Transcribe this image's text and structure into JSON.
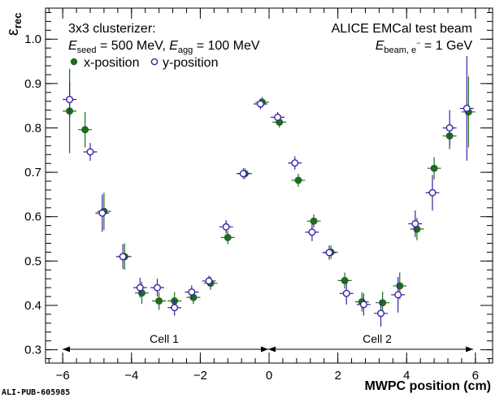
{
  "chart_data": {
    "type": "scatter",
    "title": "",
    "xlabel": "MWPC position (cm)",
    "ylabel": "ε",
    "ylabel_sub": "rec",
    "xlim": [
      -6.5,
      6.5
    ],
    "ylim": [
      0.27,
      1.07
    ],
    "x_ticks": [
      -6,
      -4,
      -2,
      0,
      2,
      4,
      6
    ],
    "x_tick_labels": [
      "−6",
      "−4",
      "−2",
      "0",
      "2",
      "4",
      "6"
    ],
    "y_ticks": [
      0.3,
      0.4,
      0.5,
      0.6,
      0.7,
      0.8,
      0.9,
      1.0
    ],
    "y_tick_labels": [
      "0.3",
      "0.4",
      "0.5",
      "0.6",
      "0.7",
      "0.8",
      "0.9",
      "1.0"
    ],
    "annotations": {
      "clusterizer": "3x3 clusterizer:",
      "seed_label": "E",
      "seed_sub": "seed",
      "seed_value": " = 500 MeV, ",
      "agg_label": "E",
      "agg_sub": "agg",
      "agg_value": " = 100 MeV",
      "experiment": "ALICE EMCal test beam",
      "beam_label": "E",
      "beam_sub": "beam, e",
      "beam_sup": "−",
      "beam_value": " = 1 GeV",
      "cell1": "Cell 1",
      "cell2": "Cell 2",
      "watermark": "ALI-PUB-605985"
    },
    "legend": [
      {
        "name": "x-position",
        "marker": "filled-circle",
        "color": "#1f6b1f"
      },
      {
        "name": "y-position",
        "marker": "open-circle",
        "color": "#3a1fa8"
      }
    ],
    "series": [
      {
        "name": "x-position",
        "color": "#1f6b1f",
        "fill": "#1f6b1f",
        "points": [
          {
            "x": -5.8,
            "y": 0.838,
            "ey": 0.095
          },
          {
            "x": -5.35,
            "y": 0.796,
            "ey": 0.04
          },
          {
            "x": -4.8,
            "y": 0.612,
            "ey": 0.042
          },
          {
            "x": -4.2,
            "y": 0.51,
            "ey": 0.03
          },
          {
            "x": -3.7,
            "y": 0.428,
            "ey": 0.025
          },
          {
            "x": -3.2,
            "y": 0.41,
            "ey": 0.02
          },
          {
            "x": -2.75,
            "y": 0.41,
            "ey": 0.02
          },
          {
            "x": -2.2,
            "y": 0.418,
            "ey": 0.015
          },
          {
            "x": -1.7,
            "y": 0.45,
            "ey": 0.015
          },
          {
            "x": -1.2,
            "y": 0.553,
            "ey": 0.015
          },
          {
            "x": -0.7,
            "y": 0.697,
            "ey": 0.012
          },
          {
            "x": -0.2,
            "y": 0.858,
            "ey": 0.012
          },
          {
            "x": 0.3,
            "y": 0.813,
            "ey": 0.012
          },
          {
            "x": 0.85,
            "y": 0.682,
            "ey": 0.015
          },
          {
            "x": 1.3,
            "y": 0.59,
            "ey": 0.015
          },
          {
            "x": 1.8,
            "y": 0.52,
            "ey": 0.015
          },
          {
            "x": 2.2,
            "y": 0.456,
            "ey": 0.018
          },
          {
            "x": 2.7,
            "y": 0.408,
            "ey": 0.022
          },
          {
            "x": 3.3,
            "y": 0.406,
            "ey": 0.025
          },
          {
            "x": 3.8,
            "y": 0.444,
            "ey": 0.03
          },
          {
            "x": 4.3,
            "y": 0.572,
            "ey": 0.025
          },
          {
            "x": 4.8,
            "y": 0.709,
            "ey": 0.025
          },
          {
            "x": 5.25,
            "y": 0.782,
            "ey": 0.03
          },
          {
            "x": 5.8,
            "y": 0.836,
            "ey": 0.08
          }
        ]
      },
      {
        "name": "y-position",
        "color": "#3a1fa8",
        "fill": "#ffffff",
        "points": [
          {
            "x": -5.8,
            "y": 0.864,
            "ey": 0.04
          },
          {
            "x": -5.2,
            "y": 0.746,
            "ey": 0.02
          },
          {
            "x": -4.85,
            "y": 0.608,
            "ey": 0.042
          },
          {
            "x": -4.25,
            "y": 0.51,
            "ey": 0.028
          },
          {
            "x": -3.75,
            "y": 0.44,
            "ey": 0.022
          },
          {
            "x": -3.25,
            "y": 0.44,
            "ey": 0.02
          },
          {
            "x": -2.75,
            "y": 0.395,
            "ey": 0.018
          },
          {
            "x": -2.25,
            "y": 0.43,
            "ey": 0.015
          },
          {
            "x": -1.75,
            "y": 0.455,
            "ey": 0.012
          },
          {
            "x": -1.25,
            "y": 0.577,
            "ey": 0.015
          },
          {
            "x": -0.75,
            "y": 0.697,
            "ey": 0.012
          },
          {
            "x": -0.25,
            "y": 0.854,
            "ey": 0.012
          },
          {
            "x": 0.25,
            "y": 0.824,
            "ey": 0.012
          },
          {
            "x": 0.75,
            "y": 0.721,
            "ey": 0.015
          },
          {
            "x": 1.25,
            "y": 0.565,
            "ey": 0.02
          },
          {
            "x": 1.75,
            "y": 0.519,
            "ey": 0.016
          },
          {
            "x": 2.25,
            "y": 0.427,
            "ey": 0.025
          },
          {
            "x": 2.75,
            "y": 0.402,
            "ey": 0.025
          },
          {
            "x": 3.25,
            "y": 0.382,
            "ey": 0.03
          },
          {
            "x": 3.75,
            "y": 0.424,
            "ey": 0.04
          },
          {
            "x": 4.25,
            "y": 0.584,
            "ey": 0.03
          },
          {
            "x": 4.75,
            "y": 0.654,
            "ey": 0.04
          },
          {
            "x": 5.25,
            "y": 0.8,
            "ey": 0.04
          },
          {
            "x": 5.75,
            "y": 0.844,
            "ey": 0.118
          }
        ]
      }
    ]
  }
}
